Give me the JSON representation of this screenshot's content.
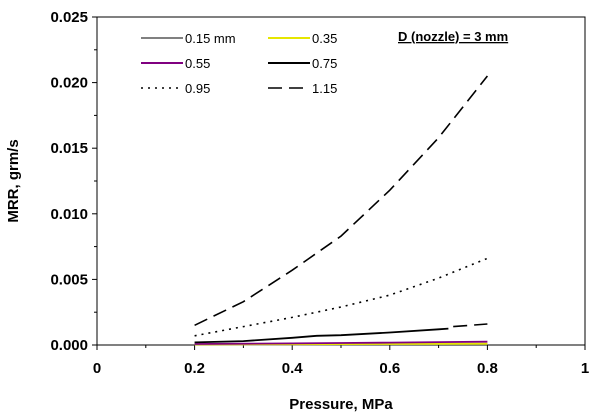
{
  "chart_data": {
    "type": "line",
    "title": "",
    "xlabel": "Pressure,  MPa",
    "ylabel": "MRR, grm/s",
    "xlim": [
      0,
      1
    ],
    "ylim": [
      0,
      0.025
    ],
    "x_ticks": [
      "0",
      "0.2",
      "0.4",
      "0.6",
      "0.8",
      "1"
    ],
    "y_ticks": [
      "0.000",
      "0.005",
      "0.010",
      "0.015",
      "0.020",
      "0.025"
    ],
    "grid": false,
    "legend_position": "top-left",
    "annotation": "D (nozzle) = 3 mm",
    "series": [
      {
        "name": "0.15 mm",
        "color": "#808080",
        "dash": "solid",
        "x": [
          0.2,
          0.3,
          0.4,
          0.5,
          0.6,
          0.7,
          0.8
        ],
        "y": [
          2e-05,
          3e-05,
          4e-05,
          5e-05,
          6e-05,
          7e-05,
          8e-05
        ]
      },
      {
        "name": "0.35",
        "color": "#e6e600",
        "dash": "solid",
        "x": [
          0.2,
          0.3,
          0.4,
          0.5,
          0.6,
          0.7,
          0.8
        ],
        "y": [
          4e-05,
          5e-05,
          6e-05,
          7e-05,
          8e-05,
          9e-05,
          0.0001
        ]
      },
      {
        "name": "0.55",
        "color": "#800080",
        "dash": "solid",
        "x": [
          0.2,
          0.3,
          0.4,
          0.5,
          0.6,
          0.7,
          0.8
        ],
        "y": [
          8e-05,
          0.0001,
          0.00012,
          0.00015,
          0.00018,
          0.00022,
          0.00025
        ]
      },
      {
        "name": "0.75",
        "color": "#000000",
        "dash": "solid",
        "x": [
          0.2,
          0.3,
          0.4,
          0.45,
          0.5,
          0.6,
          0.7,
          0.72
        ],
        "y": [
          0.0002,
          0.0003,
          0.00055,
          0.0007,
          0.00075,
          0.00095,
          0.0012,
          0.00125
        ]
      },
      {
        "name": "0.95",
        "color": "#000000",
        "dash": "dotted",
        "x": [
          0.2,
          0.3,
          0.4,
          0.5,
          0.6,
          0.7,
          0.8
        ],
        "y": [
          0.0007,
          0.0014,
          0.0021,
          0.0029,
          0.0038,
          0.0051,
          0.0066
        ]
      },
      {
        "name": "1.15",
        "color": "#000000",
        "dash": "longdash",
        "x": [
          0.2,
          0.3,
          0.4,
          0.5,
          0.6,
          0.7,
          0.8
        ],
        "y": [
          0.0015,
          0.0033,
          0.0057,
          0.0083,
          0.0118,
          0.0158,
          0.0205
        ]
      },
      {
        "name": "",
        "color": "#000000",
        "dash": "longdash",
        "x": [
          0.73,
          0.8
        ],
        "y": [
          0.0014,
          0.0016
        ]
      }
    ]
  }
}
